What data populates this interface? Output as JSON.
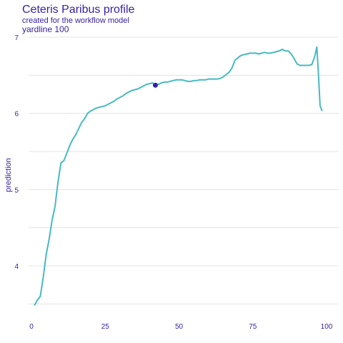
{
  "title": "Ceteris Paribus profile",
  "subtitle": "created for the workflow model",
  "panel_label": "yardline  100",
  "colors": {
    "text": "#371ea3",
    "line": "#46bac2",
    "point": "#371ea3",
    "grid": "#dddddd"
  },
  "chart_data": {
    "type": "line",
    "title": "Ceteris Paribus profile",
    "subtitle": "created for the workflow model",
    "variable": "yardline  100",
    "xlabel": "",
    "ylabel": "prediction",
    "xlim": [
      0,
      100
    ],
    "ylim": [
      3.45,
      7.05
    ],
    "x_ticks": [
      "0",
      "25",
      "50",
      "75",
      "100"
    ],
    "y_ticks": [
      "4",
      "5",
      "6",
      "7"
    ],
    "grid": "horizontal",
    "legend": "none",
    "series": [
      {
        "values": [
          [
            1,
            3.48
          ],
          [
            2,
            3.55
          ],
          [
            3,
            3.6
          ],
          [
            4,
            3.85
          ],
          [
            5,
            4.15
          ],
          [
            6,
            4.35
          ],
          [
            7,
            4.6
          ],
          [
            8,
            4.78
          ],
          [
            9,
            5.1
          ],
          [
            10,
            5.35
          ],
          [
            11,
            5.38
          ],
          [
            12,
            5.48
          ],
          [
            13,
            5.58
          ],
          [
            14,
            5.66
          ],
          [
            15,
            5.72
          ],
          [
            16,
            5.8
          ],
          [
            17,
            5.88
          ],
          [
            18,
            5.93
          ],
          [
            19,
            6.0
          ],
          [
            20,
            6.03
          ],
          [
            21,
            6.05
          ],
          [
            22,
            6.07
          ],
          [
            23,
            6.08
          ],
          [
            24,
            6.09
          ],
          [
            25,
            6.1
          ],
          [
            26,
            6.12
          ],
          [
            27,
            6.14
          ],
          [
            28,
            6.16
          ],
          [
            29,
            6.19
          ],
          [
            30,
            6.21
          ],
          [
            31,
            6.23
          ],
          [
            32,
            6.26
          ],
          [
            33,
            6.28
          ],
          [
            34,
            6.3
          ],
          [
            35,
            6.31
          ],
          [
            36,
            6.32
          ],
          [
            37,
            6.34
          ],
          [
            38,
            6.36
          ],
          [
            39,
            6.38
          ],
          [
            40,
            6.39
          ],
          [
            41,
            6.4
          ],
          [
            42,
            6.37
          ],
          [
            43,
            6.38
          ],
          [
            44,
            6.4
          ],
          [
            45,
            6.41
          ],
          [
            46,
            6.41
          ],
          [
            47,
            6.42
          ],
          [
            48,
            6.43
          ],
          [
            49,
            6.44
          ],
          [
            50,
            6.44
          ],
          [
            51,
            6.44
          ],
          [
            52,
            6.43
          ],
          [
            53,
            6.42
          ],
          [
            54,
            6.42
          ],
          [
            55,
            6.43
          ],
          [
            56,
            6.43
          ],
          [
            57,
            6.44
          ],
          [
            58,
            6.44
          ],
          [
            59,
            6.44
          ],
          [
            60,
            6.45
          ],
          [
            61,
            6.45
          ],
          [
            62,
            6.45
          ],
          [
            63,
            6.45
          ],
          [
            64,
            6.46
          ],
          [
            65,
            6.48
          ],
          [
            66,
            6.51
          ],
          [
            67,
            6.54
          ],
          [
            68,
            6.6
          ],
          [
            69,
            6.7
          ],
          [
            70,
            6.73
          ],
          [
            71,
            6.76
          ],
          [
            72,
            6.77
          ],
          [
            73,
            6.78
          ],
          [
            74,
            6.79
          ],
          [
            75,
            6.79
          ],
          [
            76,
            6.79
          ],
          [
            77,
            6.78
          ],
          [
            78,
            6.79
          ],
          [
            79,
            6.8
          ],
          [
            80,
            6.79
          ],
          [
            81,
            6.79
          ],
          [
            82,
            6.8
          ],
          [
            83,
            6.81
          ],
          [
            84,
            6.82
          ],
          [
            85,
            6.84
          ],
          [
            86,
            6.82
          ],
          [
            87,
            6.82
          ],
          [
            88,
            6.78
          ],
          [
            89,
            6.72
          ],
          [
            90,
            6.65
          ],
          [
            91,
            6.63
          ],
          [
            92,
            6.63
          ],
          [
            93,
            6.63
          ],
          [
            94,
            6.63
          ],
          [
            95,
            6.64
          ],
          [
            96,
            6.75
          ],
          [
            96.7,
            6.87
          ],
          [
            97.2,
            6.55
          ],
          [
            97.8,
            6.1
          ],
          [
            98.5,
            6.03
          ]
        ]
      }
    ],
    "observation": {
      "x": 42,
      "y": 6.37
    }
  }
}
